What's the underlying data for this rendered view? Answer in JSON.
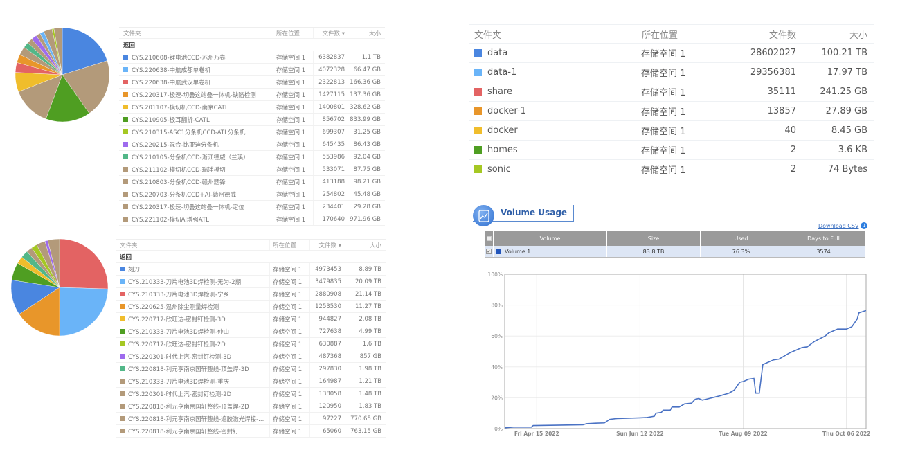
{
  "table_top_left": {
    "headers": [
      "文件夹",
      "所在位置",
      "文件数 ▾",
      "大小"
    ],
    "back_label": "返回",
    "rows": [
      {
        "name": "CYS.210608-锂电池CCD-苏州万卷",
        "location": "存储空间 1",
        "files": "6382837",
        "size": "1.1 TB",
        "color": "#4a86e0"
      },
      {
        "name": "CYS.220638-中航成都单卷机",
        "location": "存储空间 1",
        "files": "4072328",
        "size": "66.47 GB",
        "color": "#6ab4f8"
      },
      {
        "name": "CYS.220638-中航武汉单卷机",
        "location": "存储空间 1",
        "files": "2322813",
        "size": "166.36 GB",
        "color": "#e36363"
      },
      {
        "name": "CYS.220317-极速-切叠这站叠一体机-缺陷检测",
        "location": "存储空间 1",
        "files": "1427115",
        "size": "137.36 GB",
        "color": "#e8962a"
      },
      {
        "name": "CYS.201107-模切机CCD-南京CATL",
        "location": "存储空间 1",
        "files": "1400801",
        "size": "328.62 GB",
        "color": "#f0bd2c"
      },
      {
        "name": "CYS.210905-极耳翻折-CATL",
        "location": "存储空间 1",
        "files": "856702",
        "size": "833.99 GB",
        "color": "#4f9e22"
      },
      {
        "name": "CYS.210315-ASC1分条机CCD-ATL分条机",
        "location": "存储空间 1",
        "files": "699307",
        "size": "31.25 GB",
        "color": "#a5c823"
      },
      {
        "name": "CYS.220215-混合-比亚迪分条机",
        "location": "存储空间 1",
        "files": "645435",
        "size": "86.43 GB",
        "color": "#9e6bee"
      },
      {
        "name": "CYS.210105-分条机CCD-浙江德威（兰溪）",
        "location": "存储空间 1",
        "files": "553986",
        "size": "92.04 GB",
        "color": "#52b788"
      },
      {
        "name": "CYS.211102-模切机CCD-瑞浦模切",
        "location": "存储空间 1",
        "files": "533071",
        "size": "87.75 GB",
        "color": "#b39a7a"
      },
      {
        "name": "CYS.210803-分条机CCD-赣州题锋",
        "location": "存储空间 1",
        "files": "413188",
        "size": "98.21 GB",
        "color": "#b39a7a"
      },
      {
        "name": "CYS.220703-分条机CCD+AI-赣州德威",
        "location": "存储空间 1",
        "files": "254802",
        "size": "45.48 GB",
        "color": "#b39a7a"
      },
      {
        "name": "CYS.220317-极速-切叠这站叠一体机-定位",
        "location": "存储空间 1",
        "files": "234401",
        "size": "29.28 GB",
        "color": "#b39a7a"
      },
      {
        "name": "CYS.221102-模切AI增强ATL",
        "location": "存储空间 1",
        "files": "170640",
        "size": "971.96 GB",
        "color": "#b39a7a"
      }
    ]
  },
  "table_bottom_left": {
    "headers": [
      "文件夹",
      "所在位置",
      "文件数 ▾",
      "大小"
    ],
    "back_label": "返回",
    "rows": [
      {
        "name": "刻刀",
        "location": "存储空间 1",
        "files": "4973453",
        "size": "8.89 TB",
        "color": "#4a86e0"
      },
      {
        "name": "CYS.210333-刀片电池3D焊检测-无为-2期",
        "location": "存储空间 1",
        "files": "3479835",
        "size": "20.09 TB",
        "color": "#6ab4f8"
      },
      {
        "name": "CYS.210333-刀片电池3D焊检测-宁乡",
        "location": "存储空间 1",
        "files": "2880908",
        "size": "21.14 TB",
        "color": "#e36363"
      },
      {
        "name": "CYS.220625-温州除尘测量焊检测",
        "location": "存储空间 1",
        "files": "1253530",
        "size": "11.27 TB",
        "color": "#e8962a"
      },
      {
        "name": "CYS.220717-欣旺达-密封钉检测-3D",
        "location": "存储空间 1",
        "files": "944827",
        "size": "2.08 TB",
        "color": "#f0bd2c"
      },
      {
        "name": "CYS.210333-刀片电池3D焊检测-仲山",
        "location": "存储空间 1",
        "files": "727638",
        "size": "4.99 TB",
        "color": "#4f9e22"
      },
      {
        "name": "CYS.220717-欣旺达-密封钉检测-2D",
        "location": "存储空间 1",
        "files": "630887",
        "size": "1.6 TB",
        "color": "#a5c823"
      },
      {
        "name": "CYS.220301-时代上汽-密封钉检测-3D",
        "location": "存储空间 1",
        "files": "487368",
        "size": "857 GB",
        "color": "#9e6bee"
      },
      {
        "name": "CYS.220818-利元亨南京国轩整线-顶盖焊-3D",
        "location": "存储空间 1",
        "files": "297830",
        "size": "1.98 TB",
        "color": "#52b788"
      },
      {
        "name": "CYS.210333-刀片电池3D焊检测-重庆",
        "location": "存储空间 1",
        "files": "164987",
        "size": "1.21 TB",
        "color": "#b39a7a"
      },
      {
        "name": "CYS.220301-时代上汽-密封钉检测-2D",
        "location": "存储空间 1",
        "files": "138058",
        "size": "1.48 TB",
        "color": "#b39a7a"
      },
      {
        "name": "CYS.220818-利元亨南京国轩整线-顶盖焊-2D",
        "location": "存储空间 1",
        "files": "120950",
        "size": "1.83 TB",
        "color": "#b39a7a"
      },
      {
        "name": "CYS.220818-利元亨南京国轩整线-遮胶激光焊接-...",
        "location": "存储空间 1",
        "files": "97227",
        "size": "770.65 GB",
        "color": "#b39a7a"
      },
      {
        "name": "CYS.220818-利元亨南京国轩整线-密封钉",
        "location": "存储空间 1",
        "files": "65060",
        "size": "763.15 GB",
        "color": "#b39a7a"
      }
    ]
  },
  "table_right": {
    "headers": [
      "文件夹",
      "所在位置",
      "文件数",
      "大小"
    ],
    "rows": [
      {
        "name": "data",
        "location": "存储空间 1",
        "files": "28602027",
        "size": "100.21 TB",
        "color": "#4a86e0"
      },
      {
        "name": "data-1",
        "location": "存储空间 1",
        "files": "29356381",
        "size": "17.97 TB",
        "color": "#6ab4f8"
      },
      {
        "name": "share",
        "location": "存储空间 1",
        "files": "35111",
        "size": "241.25 GB",
        "color": "#e36363"
      },
      {
        "name": "docker-1",
        "location": "存储空间 1",
        "files": "13857",
        "size": "27.89 GB",
        "color": "#e8962a"
      },
      {
        "name": "docker",
        "location": "存储空间 1",
        "files": "40",
        "size": "8.45 GB",
        "color": "#f0bd2c"
      },
      {
        "name": "homes",
        "location": "存储空间 1",
        "files": "2",
        "size": "3.6 KB",
        "color": "#4f9e22"
      },
      {
        "name": "sonic",
        "location": "存储空间 1",
        "files": "2",
        "size": "74 Bytes",
        "color": "#a5c823"
      }
    ]
  },
  "volume_usage": {
    "title": "Volume Usage",
    "icon": "chart-line-icon",
    "download_label": "Download CSV",
    "headers": [
      "Volume",
      "Size",
      "Used",
      "Days to Full"
    ],
    "row": {
      "volume": "Volume 1",
      "size": "83.8 TB",
      "used": "76.3%",
      "days": "3574",
      "color": "#2255bb",
      "checked": true
    }
  },
  "chart_data": [
    {
      "type": "pie",
      "colors": [
        "#4a86e0",
        "#b39a7a",
        "#4f9e22",
        "#b39a7a",
        "#f0bd2c",
        "#e36363",
        "#e8962a",
        "#b39a7a",
        "#52b788",
        "#b39a7a",
        "#9e6bee",
        "#b39a7a",
        "#6ab4f8",
        "#b39a7a",
        "#a5c823",
        "#b39a7a"
      ],
      "values": [
        21,
        21,
        16,
        14,
        7,
        3.5,
        3,
        3,
        2,
        2,
        2,
        1.5,
        1.5,
        3,
        0.7,
        3
      ]
    },
    {
      "type": "pie",
      "colors": [
        "#e36363",
        "#6ab4f8",
        "#e8962a",
        "#4a86e0",
        "#4f9e22",
        "#f0bd2c",
        "#52b788",
        "#b39a7a",
        "#a5c823",
        "#b39a7a",
        "#9e6bee",
        "#b39a7a"
      ],
      "values": [
        26,
        25,
        16,
        12,
        6,
        2.5,
        2.5,
        2,
        2,
        3,
        1,
        4
      ]
    },
    {
      "type": "line",
      "xlim": [
        "2022-03-28",
        "2022-10-17"
      ],
      "ylim": [
        0,
        100
      ],
      "yticks": [
        "0%",
        "20%",
        "40%",
        "60%",
        "80%",
        "100%"
      ],
      "yvalues": [
        0,
        20,
        40,
        60,
        80,
        100
      ],
      "xticks": [
        {
          "label": "Fri Apr 15 2022",
          "date": "2022-04-15"
        },
        {
          "label": "Sun Jun 12 2022",
          "date": "2022-06-12"
        },
        {
          "label": "Tue Aug 09 2022",
          "date": "2022-08-09"
        },
        {
          "label": "Thu Oct 06 2022",
          "date": "2022-10-06"
        }
      ],
      "grid": true,
      "color": "#4a72c4",
      "points": [
        [
          "2022-03-28",
          0.5
        ],
        [
          "2022-04-02",
          1
        ],
        [
          "2022-04-12",
          1
        ],
        [
          "2022-04-13",
          2
        ],
        [
          "2022-04-26",
          2.2
        ],
        [
          "2022-05-11",
          2.5
        ],
        [
          "2022-05-13",
          3.2
        ],
        [
          "2022-05-18",
          3.5
        ],
        [
          "2022-05-23",
          3.7
        ],
        [
          "2022-05-26",
          6
        ],
        [
          "2022-05-30",
          6.5
        ],
        [
          "2022-06-12",
          7
        ],
        [
          "2022-06-16",
          7.2
        ],
        [
          "2022-06-20",
          8
        ],
        [
          "2022-06-21",
          10
        ],
        [
          "2022-06-24",
          10.5
        ],
        [
          "2022-06-25",
          12
        ],
        [
          "2022-06-29",
          12
        ],
        [
          "2022-06-30",
          14
        ],
        [
          "2022-07-04",
          14
        ],
        [
          "2022-07-07",
          16
        ],
        [
          "2022-07-11",
          16.5
        ],
        [
          "2022-07-13",
          19
        ],
        [
          "2022-07-15",
          19.5
        ],
        [
          "2022-07-17",
          18.5
        ],
        [
          "2022-07-19",
          19
        ],
        [
          "2022-07-26",
          21
        ],
        [
          "2022-08-01",
          23
        ],
        [
          "2022-08-04",
          25
        ],
        [
          "2022-08-07",
          30
        ],
        [
          "2022-08-09",
          30.5
        ],
        [
          "2022-08-12",
          32
        ],
        [
          "2022-08-15",
          32.5
        ],
        [
          "2022-08-16",
          23
        ],
        [
          "2022-08-18",
          23
        ],
        [
          "2022-08-20",
          41.5
        ],
        [
          "2022-08-23",
          43
        ],
        [
          "2022-08-26",
          44.5
        ],
        [
          "2022-08-29",
          45
        ],
        [
          "2022-09-04",
          49
        ],
        [
          "2022-09-08",
          51
        ],
        [
          "2022-09-11",
          52.5
        ],
        [
          "2022-09-14",
          53
        ],
        [
          "2022-09-18",
          56.5
        ],
        [
          "2022-09-24",
          60
        ],
        [
          "2022-09-26",
          62
        ],
        [
          "2022-10-01",
          64.5
        ],
        [
          "2022-10-06",
          64.5
        ],
        [
          "2022-10-09",
          66
        ],
        [
          "2022-10-12",
          71
        ],
        [
          "2022-10-13",
          75
        ],
        [
          "2022-10-17",
          76.5
        ]
      ]
    }
  ]
}
